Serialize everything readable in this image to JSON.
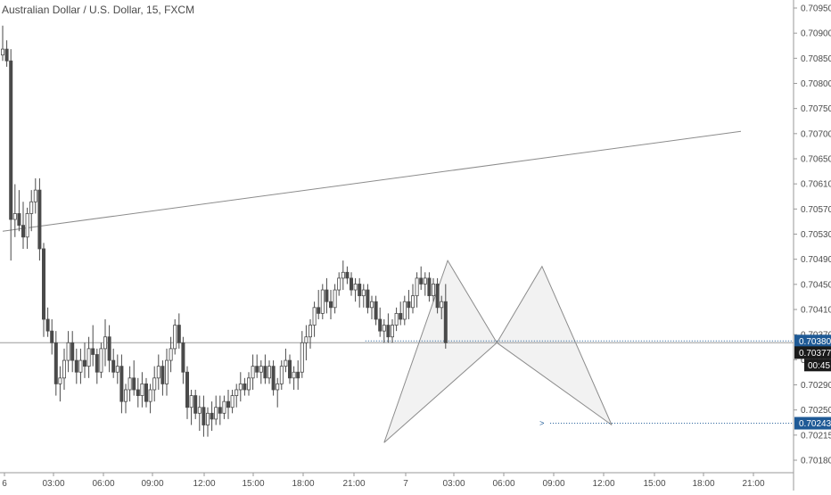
{
  "header": {
    "title": "Australian Dollar / U.S. Dollar, 15, FXCM"
  },
  "chart_data": {
    "type": "candlestick",
    "title": "Australian Dollar / U.S. Dollar, 15, FXCM",
    "y_ticks": [
      "0.70950",
      "0.70900",
      "0.70850",
      "0.70800",
      "0.70750",
      "0.70700",
      "0.70650",
      "0.70610",
      "0.70570",
      "0.70530",
      "0.70490",
      "0.70450",
      "0.70410",
      "0.70370",
      "0.70330",
      "0.70290",
      "0.70250",
      "0.70215",
      "0.70180"
    ],
    "x_ticks": [
      "6",
      "03:00",
      "06:00",
      "09:00",
      "12:00",
      "15:00",
      "18:00",
      "21:00",
      "7",
      "03:00",
      "06:00",
      "09:00",
      "12:00",
      "15:00",
      "18:00",
      "21:00"
    ],
    "price_badges": {
      "current_price": "0.70380",
      "alt_price": "0.70377",
      "countdown": "00:45",
      "target_price": "0.70243"
    },
    "colors": {
      "candle_up": "#ffffff",
      "candle_down": "#4a4a4a",
      "outline": "#4a4a4a",
      "badge": "#1f5a96",
      "dotted_line": "#1f5a96",
      "pattern_fill": "#f2f2f2",
      "pattern_line": "#8c8c8c"
    },
    "grid": false,
    "candles": [
      [
        0.7087,
        0.7092,
        0.7086,
        0.7088
      ],
      [
        0.7088,
        0.70895,
        0.7085,
        0.7086
      ],
      [
        0.7086,
        0.7088,
        0.7052,
        0.7059
      ],
      [
        0.7059,
        0.7065,
        0.7056,
        0.706
      ],
      [
        0.706,
        0.7064,
        0.7057,
        0.7058
      ],
      [
        0.7058,
        0.7062,
        0.7054,
        0.7056
      ],
      [
        0.7056,
        0.7061,
        0.7054,
        0.706
      ],
      [
        0.706,
        0.7064,
        0.7057,
        0.7062
      ],
      [
        0.7062,
        0.7066,
        0.706,
        0.7064
      ],
      [
        0.7064,
        0.7066,
        0.7052,
        0.7054
      ],
      [
        0.7054,
        0.7055,
        0.7039,
        0.7042
      ],
      [
        0.7042,
        0.7044,
        0.7039,
        0.704
      ],
      [
        0.704,
        0.7042,
        0.7036,
        0.7038
      ],
      [
        0.7038,
        0.704,
        0.7029,
        0.7031
      ],
      [
        0.7031,
        0.7034,
        0.7028,
        0.7032
      ],
      [
        0.7032,
        0.7037,
        0.703,
        0.7035
      ],
      [
        0.7035,
        0.704,
        0.7033,
        0.7038
      ],
      [
        0.7038,
        0.704,
        0.7033,
        0.7035
      ],
      [
        0.7035,
        0.7037,
        0.7031,
        0.7033
      ],
      [
        0.7033,
        0.7037,
        0.7031,
        0.7035
      ],
      [
        0.7035,
        0.7038,
        0.7032,
        0.7034
      ],
      [
        0.7034,
        0.7039,
        0.7032,
        0.7037
      ],
      [
        0.7037,
        0.7041,
        0.7034,
        0.7036
      ],
      [
        0.7036,
        0.7037,
        0.7031,
        0.7033
      ],
      [
        0.7033,
        0.7038,
        0.7032,
        0.7037
      ],
      [
        0.7037,
        0.7042,
        0.7034,
        0.7039
      ],
      [
        0.7039,
        0.7041,
        0.7033,
        0.7035
      ],
      [
        0.7035,
        0.7037,
        0.7032,
        0.7033
      ],
      [
        0.7033,
        0.7036,
        0.7031,
        0.7034
      ],
      [
        0.7034,
        0.7036,
        0.7026,
        0.7028
      ],
      [
        0.7028,
        0.7031,
        0.7026,
        0.703
      ],
      [
        0.703,
        0.7034,
        0.7028,
        0.7032
      ],
      [
        0.7032,
        0.7035,
        0.7029,
        0.703
      ],
      [
        0.703,
        0.7032,
        0.7027,
        0.7029
      ],
      [
        0.7029,
        0.7033,
        0.7027,
        0.7031
      ],
      [
        0.7031,
        0.7032,
        0.7027,
        0.7028
      ],
      [
        0.7028,
        0.7031,
        0.7026,
        0.703
      ],
      [
        0.703,
        0.7034,
        0.7028,
        0.7032
      ],
      [
        0.7032,
        0.7036,
        0.703,
        0.7034
      ],
      [
        0.7034,
        0.7035,
        0.7029,
        0.7031
      ],
      [
        0.7031,
        0.7037,
        0.7029,
        0.7035
      ],
      [
        0.7035,
        0.7039,
        0.7033,
        0.7037
      ],
      [
        0.7037,
        0.7042,
        0.7036,
        0.7041
      ],
      [
        0.7041,
        0.7043,
        0.7037,
        0.7038
      ],
      [
        0.7038,
        0.7039,
        0.7031,
        0.7033
      ],
      [
        0.7033,
        0.7034,
        0.7025,
        0.7027
      ],
      [
        0.7027,
        0.703,
        0.7024,
        0.7029
      ],
      [
        0.7029,
        0.703,
        0.7025,
        0.7026
      ],
      [
        0.7026,
        0.7029,
        0.7023,
        0.7027
      ],
      [
        0.7027,
        0.7029,
        0.7022,
        0.7024
      ],
      [
        0.7024,
        0.7027,
        0.7022,
        0.7026
      ],
      [
        0.7026,
        0.7028,
        0.7023,
        0.7025
      ],
      [
        0.7025,
        0.7029,
        0.7024,
        0.7027
      ],
      [
        0.7027,
        0.7029,
        0.7024,
        0.7026
      ],
      [
        0.7026,
        0.7029,
        0.7025,
        0.7028
      ],
      [
        0.7028,
        0.703,
        0.7025,
        0.7027
      ],
      [
        0.7027,
        0.703,
        0.7026,
        0.7029
      ],
      [
        0.7029,
        0.7031,
        0.7027,
        0.703
      ],
      [
        0.703,
        0.7033,
        0.7028,
        0.7031
      ],
      [
        0.7031,
        0.7032,
        0.7029,
        0.703
      ],
      [
        0.703,
        0.7033,
        0.7029,
        0.7032
      ],
      [
        0.7032,
        0.7036,
        0.703,
        0.7034
      ],
      [
        0.7034,
        0.7036,
        0.7032,
        0.7033
      ],
      [
        0.7033,
        0.7035,
        0.7031,
        0.7034
      ],
      [
        0.7034,
        0.7036,
        0.7031,
        0.7032
      ],
      [
        0.7032,
        0.7035,
        0.7031,
        0.7034
      ],
      [
        0.7034,
        0.7035,
        0.7029,
        0.703
      ],
      [
        0.703,
        0.7032,
        0.7027,
        0.7031
      ],
      [
        0.7031,
        0.7035,
        0.703,
        0.7034
      ],
      [
        0.7034,
        0.7037,
        0.7033,
        0.7035
      ],
      [
        0.7035,
        0.7036,
        0.7031,
        0.7032
      ],
      [
        0.7032,
        0.7034,
        0.703,
        0.7033
      ],
      [
        0.7033,
        0.7035,
        0.703,
        0.7032
      ],
      [
        0.7033,
        0.704,
        0.7032,
        0.7038
      ],
      [
        0.7038,
        0.7041,
        0.7035,
        0.7039
      ],
      [
        0.7039,
        0.7042,
        0.7037,
        0.7041
      ],
      [
        0.7041,
        0.7045,
        0.7039,
        0.7044
      ],
      [
        0.7044,
        0.7047,
        0.7042,
        0.7043
      ],
      [
        0.7043,
        0.7048,
        0.7042,
        0.7047
      ],
      [
        0.7047,
        0.7049,
        0.7043,
        0.7045
      ],
      [
        0.7045,
        0.7047,
        0.7042,
        0.7044
      ],
      [
        0.7044,
        0.7048,
        0.7043,
        0.7047
      ],
      [
        0.7047,
        0.705,
        0.7046,
        0.7049
      ],
      [
        0.7049,
        0.7052,
        0.7047,
        0.705
      ],
      [
        0.705,
        0.7051,
        0.7048,
        0.7049
      ],
      [
        0.7049,
        0.705,
        0.7046,
        0.7047
      ],
      [
        0.7047,
        0.7049,
        0.7045,
        0.7048
      ],
      [
        0.7048,
        0.7049,
        0.7044,
        0.7046
      ],
      [
        0.7046,
        0.7048,
        0.7044,
        0.7047
      ],
      [
        0.7047,
        0.7048,
        0.7043,
        0.7044
      ],
      [
        0.7044,
        0.7046,
        0.7042,
        0.7045
      ],
      [
        0.7045,
        0.7046,
        0.7041,
        0.7042
      ],
      [
        0.7042,
        0.7044,
        0.7039,
        0.704
      ],
      [
        0.704,
        0.7042,
        0.7038,
        0.7041
      ],
      [
        0.7041,
        0.7043,
        0.7038,
        0.7039
      ],
      [
        0.7039,
        0.7042,
        0.7038,
        0.7041
      ],
      [
        0.7041,
        0.7044,
        0.704,
        0.7043
      ],
      [
        0.7043,
        0.7045,
        0.7041,
        0.7042
      ],
      [
        0.7042,
        0.7046,
        0.7041,
        0.7045
      ],
      [
        0.7045,
        0.7047,
        0.7042,
        0.7044
      ],
      [
        0.7044,
        0.7048,
        0.7043,
        0.7046
      ],
      [
        0.7046,
        0.705,
        0.7044,
        0.7049
      ],
      [
        0.7049,
        0.7051,
        0.7047,
        0.7048
      ],
      [
        0.7048,
        0.705,
        0.7046,
        0.7049
      ],
      [
        0.7049,
        0.705,
        0.7045,
        0.7046
      ],
      [
        0.7046,
        0.7049,
        0.7045,
        0.7048
      ],
      [
        0.7048,
        0.7049,
        0.7043,
        0.7044
      ],
      [
        0.7044,
        0.7046,
        0.7042,
        0.7045
      ],
      [
        0.7045,
        0.7048,
        0.7037,
        0.7038
      ]
    ],
    "drawings": {
      "trendline": [
        [
          0,
          0.7057
        ],
        [
          180,
          0.7074
        ]
      ],
      "horizontal_line_price": 0.7038,
      "harmonic_pattern": {
        "X": [
          93,
          0.7021
        ],
        "A": [
          108.5,
          0.7052
        ],
        "B": [
          120.5,
          0.7038
        ],
        "C": [
          131.5,
          0.7051
        ],
        "D": [
          148.5,
          0.7024
        ]
      },
      "target_line": {
        "from": 133.5,
        "to": 148.5,
        "price": 0.70243
      }
    }
  }
}
